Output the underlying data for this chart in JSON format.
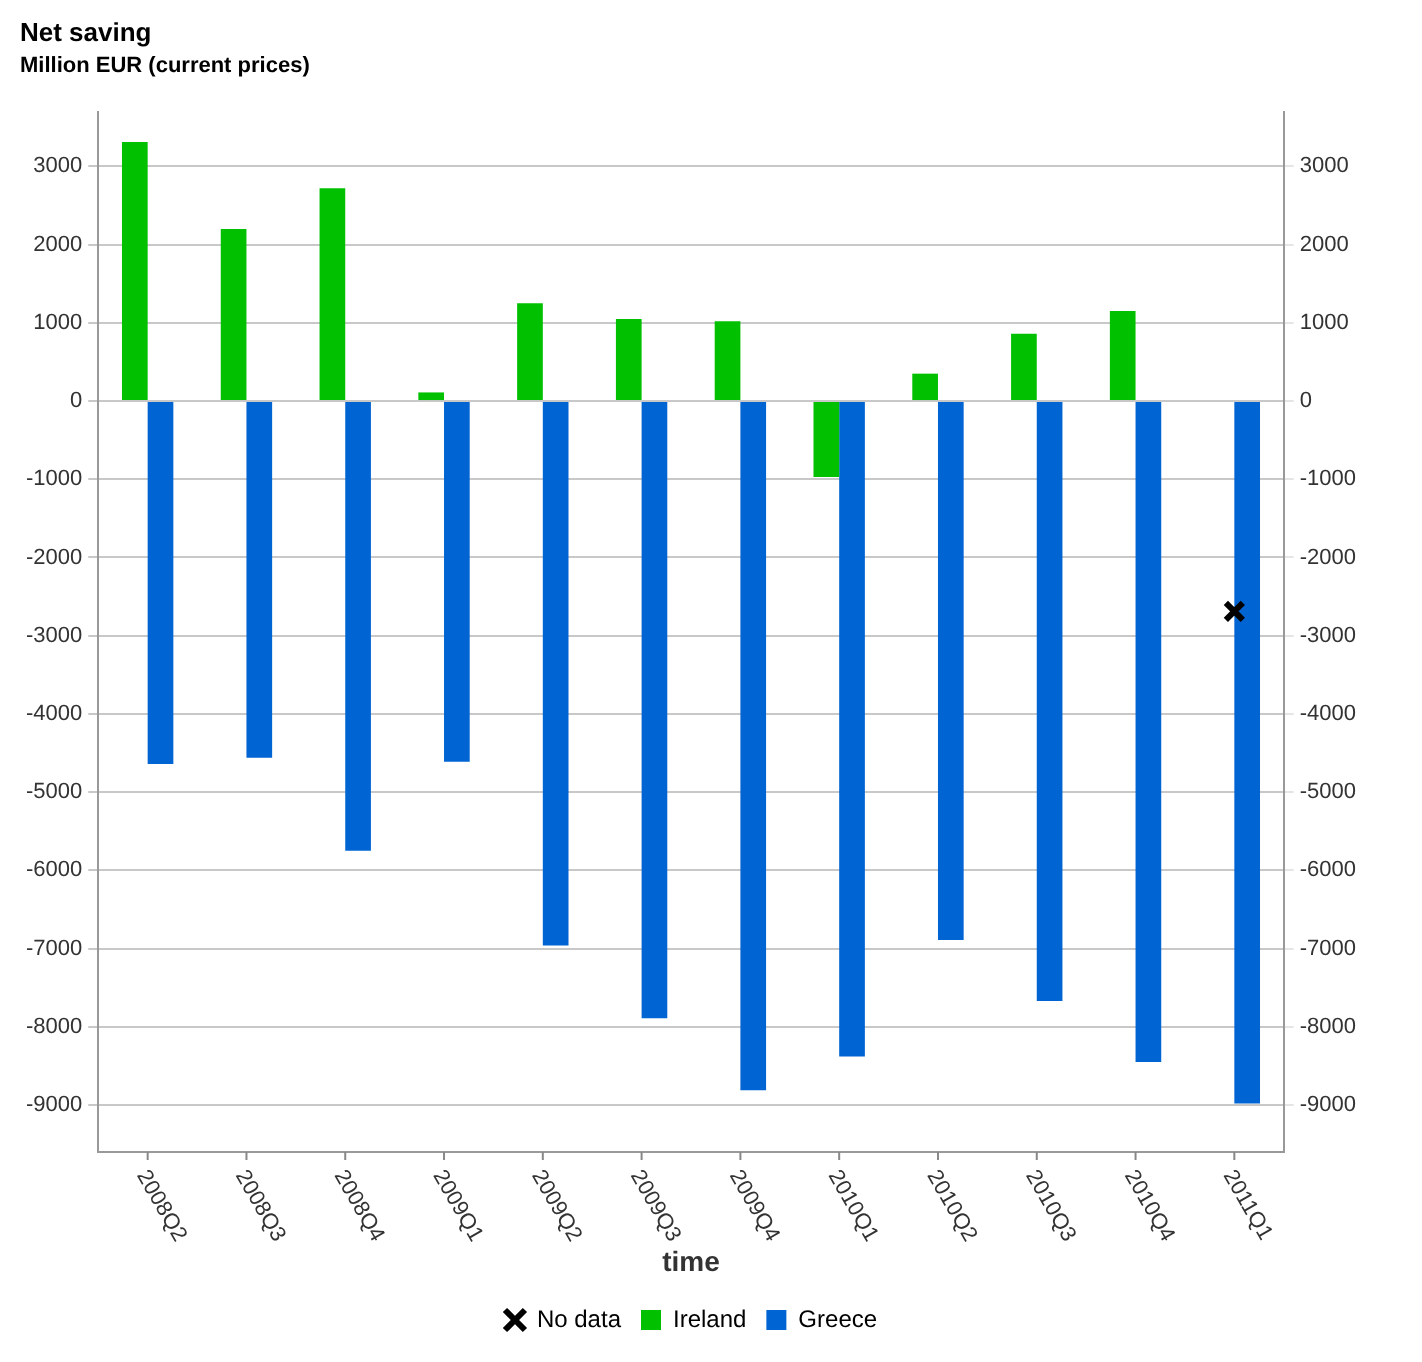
{
  "chart_data": {
    "type": "bar",
    "title": "Net saving",
    "subtitle": "Million EUR (current prices)",
    "xlabel": "time",
    "categories": [
      "2008Q2",
      "2008Q3",
      "2008Q4",
      "2009Q1",
      "2009Q2",
      "2009Q3",
      "2009Q4",
      "2010Q1",
      "2010Q2",
      "2010Q3",
      "2010Q4",
      "2011Q1"
    ],
    "series": [
      {
        "name": "Ireland",
        "color": "#00c000",
        "values": [
          3310,
          2200,
          2720,
          110,
          1250,
          1050,
          1020,
          -970,
          350,
          860,
          1150,
          null
        ]
      },
      {
        "name": "Greece",
        "color": "#0064d2",
        "values": [
          -4640,
          -4560,
          -5750,
          -4610,
          -6960,
          -7890,
          -8810,
          -8380,
          -6890,
          -7670,
          -8450,
          -8980
        ]
      },
      {
        "name": "No data",
        "type": "scatter",
        "color": "#000000",
        "marker": "cross",
        "x": [
          "2011Q1"
        ],
        "values": [
          -2690
        ]
      }
    ],
    "ylim": [
      -9600,
      3700
    ],
    "yticks": [
      -9000,
      -8000,
      -7000,
      -6000,
      -5000,
      -4000,
      -3000,
      -2000,
      -1000,
      0,
      1000,
      2000,
      3000
    ],
    "y2lim": [
      -9600,
      3700
    ],
    "y2ticks": [
      -9000,
      -8000,
      -7000,
      -6000,
      -5000,
      -4000,
      -3000,
      -2000,
      -1000,
      0,
      1000,
      2000,
      3000
    ],
    "grid": "y",
    "legend": "bottom"
  }
}
